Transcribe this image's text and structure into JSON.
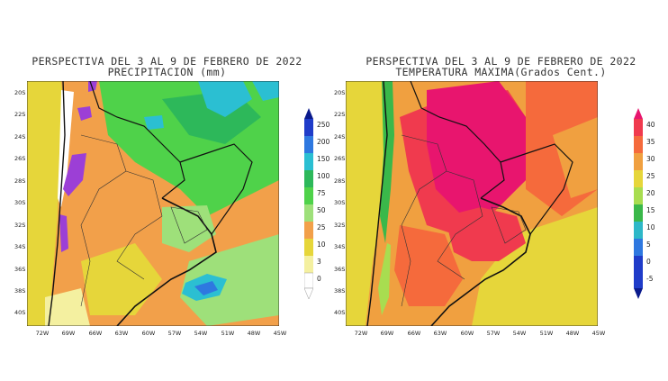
{
  "panels": [
    {
      "id": "precip",
      "title_line1": "PERSPECTIVA DEL 3 AL 9 DE FEBRERO DE 2022",
      "title_line2": "PRECIPITACION (mm)",
      "lat_labels": [
        "20S",
        "22S",
        "24S",
        "26S",
        "28S",
        "30S",
        "32S",
        "34S",
        "36S",
        "38S",
        "40S"
      ],
      "lon_labels": [
        "72W",
        "69W",
        "66W",
        "63W",
        "60W",
        "57W",
        "54W",
        "51W",
        "48W",
        "45W"
      ],
      "colorbar": {
        "labels": [
          "250",
          "200",
          "150",
          "100",
          "75",
          "50",
          "25",
          "10",
          "3",
          "0"
        ],
        "colors": [
          "#0a1a8c",
          "#1f3cc9",
          "#2e78e0",
          "#2bbfd2",
          "#2db85a",
          "#4fd24a",
          "#9ee07a",
          "#f2a04a",
          "#e6d63a",
          "#f4f0a0",
          "#ffffff"
        ]
      }
    },
    {
      "id": "temp",
      "title_line1": "PERSPECTIVA DEL 3 AL 9 DE FEBRERO DE 2022",
      "title_line2": "TEMPERATURA MAXIMA(Grados Cent.)",
      "lat_labels": [
        "20S",
        "22S",
        "24S",
        "26S",
        "28S",
        "30S",
        "32S",
        "34S",
        "36S",
        "38S",
        "40S"
      ],
      "lon_labels": [
        "72W",
        "69W",
        "66W",
        "63W",
        "60W",
        "57W",
        "54W",
        "51W",
        "48W",
        "45W"
      ],
      "colorbar": {
        "labels": [
          "40",
          "35",
          "30",
          "25",
          "20",
          "15",
          "10",
          "5",
          "0",
          "-5"
        ],
        "colors": [
          "#e8156e",
          "#f03a4e",
          "#f56a3c",
          "#f0a040",
          "#e6d63a",
          "#a8dd50",
          "#3ab84a",
          "#2eb8c8",
          "#2e78e0",
          "#1f3cc9",
          "#0a1a8c"
        ]
      }
    }
  ]
}
